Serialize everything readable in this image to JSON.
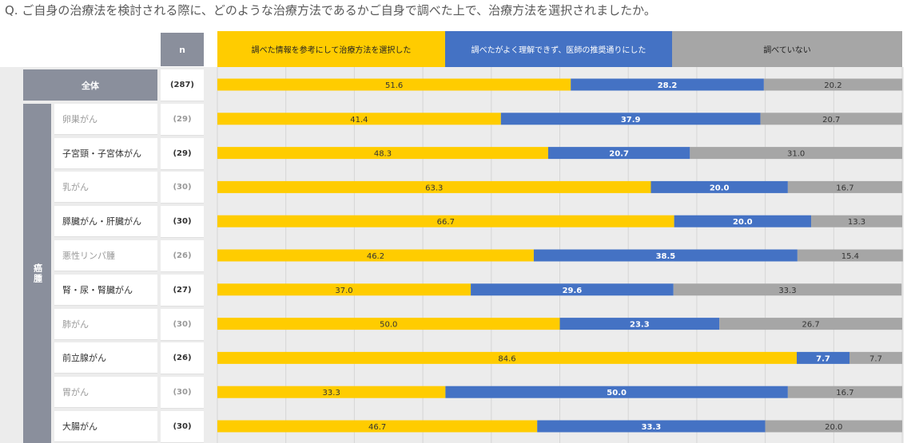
{
  "question": "Q. ご自身の治療法を検討される際に、どのような治療方法であるかご自身で調べた上で、治療方法を選択されましたか。",
  "n_header": "n",
  "category_label": "癌腫",
  "colors": {
    "s1": "#FFCC00",
    "s2": "#4472C4",
    "s3": "#A6A6A6",
    "header": "#8a8f9c"
  },
  "chart_data": {
    "type": "bar",
    "stacked": true,
    "orientation": "horizontal",
    "xlim": [
      0,
      100
    ],
    "grid": true,
    "legend_position": "top",
    "categories": [
      "全体",
      "卵巣がん",
      "子宮頸・子宮体がん",
      "乳がん",
      "膵臓がん・肝臓がん",
      "悪性リンパ腫",
      "腎・尿・腎臓がん",
      "肺がん",
      "前立腺がん",
      "胃がん",
      "大腸がん"
    ],
    "n": [
      "(287)",
      "(29)",
      "(29)",
      "(30)",
      "(30)",
      "(26)",
      "(27)",
      "(30)",
      "(26)",
      "(30)",
      "(30)"
    ],
    "series": [
      {
        "name": "調べた情報を参考にして治療方法を選択した",
        "values": [
          51.6,
          41.4,
          48.3,
          63.3,
          66.7,
          46.2,
          37.0,
          50.0,
          84.6,
          33.3,
          46.7
        ]
      },
      {
        "name": "調べたがよく理解できず、医師の推奨通りにした",
        "values": [
          28.2,
          37.9,
          20.7,
          20.0,
          20.0,
          38.5,
          29.6,
          23.3,
          7.7,
          50.0,
          33.3
        ]
      },
      {
        "name": "調べていない",
        "values": [
          20.2,
          20.7,
          31.0,
          16.7,
          13.3,
          15.4,
          33.3,
          26.7,
          7.7,
          16.7,
          20.0
        ]
      }
    ]
  }
}
